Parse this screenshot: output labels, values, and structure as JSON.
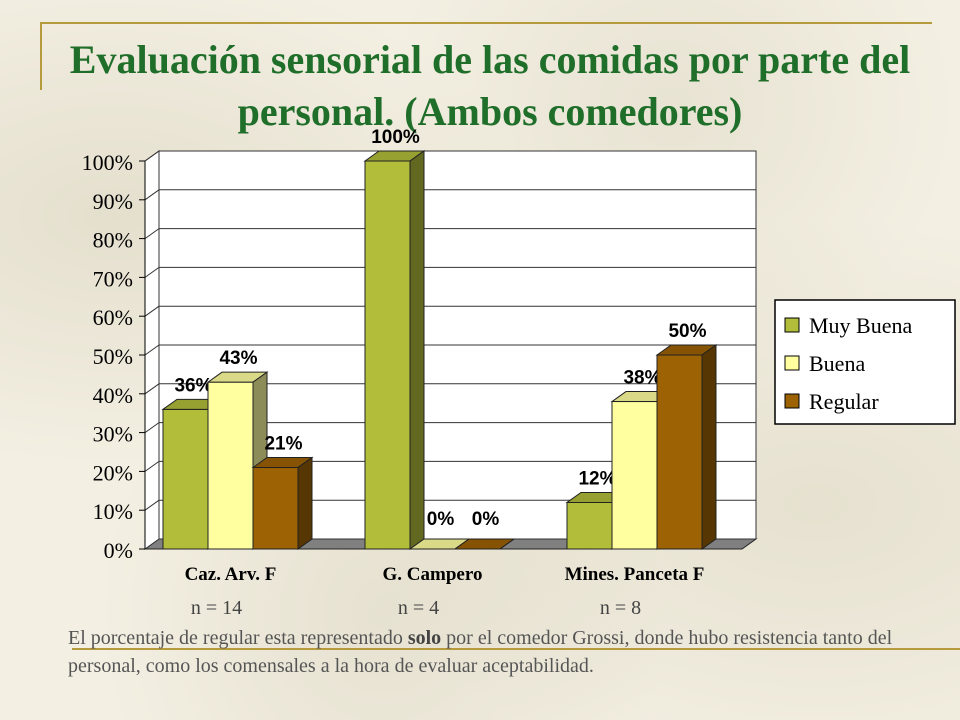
{
  "slide": {
    "title": "Evaluación sensorial de las comidas por parte del personal. (Ambos comedores)",
    "note_part1": "El porcentaje de regular esta representado ",
    "note_bold": "solo",
    "note_part2": " por el comedor Grossi, donde hubo resistencia tanto del personal, como los comensales a la hora de evaluar aceptabilidad."
  },
  "chart_data": {
    "type": "bar",
    "title": "",
    "xlabel": "",
    "ylabel": "",
    "ylim": [
      0,
      100
    ],
    "yticks": [
      "0%",
      "10%",
      "20%",
      "30%",
      "40%",
      "50%",
      "60%",
      "70%",
      "80%",
      "90%",
      "100%"
    ],
    "categories": [
      "Caz. Arv. F",
      "G. Campero",
      "Mines. Panceta F"
    ],
    "sample_sizes": [
      "n = 14",
      "n = 4",
      "n = 8"
    ],
    "series": [
      {
        "name": "Muy Buena",
        "values": [
          36,
          100,
          12
        ],
        "labels": [
          "36%",
          "100%",
          "12%"
        ],
        "color": "#b2bd3a"
      },
      {
        "name": "Buena",
        "values": [
          43,
          0,
          38
        ],
        "labels": [
          "43%",
          "0%",
          "38%"
        ],
        "color": "#ffffa0"
      },
      {
        "name": "Regular",
        "values": [
          21,
          0,
          50
        ],
        "labels": [
          "21%",
          "0%",
          "50%"
        ],
        "color": "#9c6204"
      }
    ],
    "legend_position": "right",
    "grid": true
  }
}
